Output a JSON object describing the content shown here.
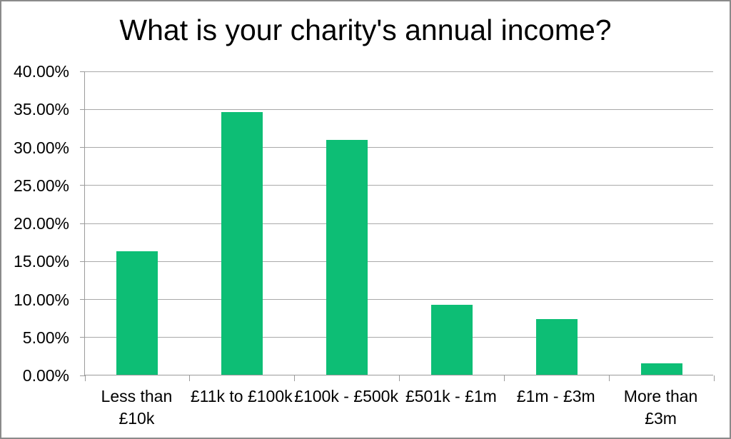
{
  "frame": {
    "border_color": "#8a8a8a",
    "background_color": "#ffffff"
  },
  "chart_data": {
    "type": "bar",
    "title": "What is your charity's annual income?",
    "categories": [
      "Less than £10k",
      "£11k to £100k",
      "£100k - £500k",
      "£501k - £1m",
      "£1m - £3m",
      "More than £3m"
    ],
    "category_label_lines": [
      [
        "Less than",
        "£10k"
      ],
      [
        "£11k to £100k"
      ],
      [
        "£100k - £500k"
      ],
      [
        "£501k - £1m"
      ],
      [
        "£1m - £3m"
      ],
      [
        "More than",
        "£3m"
      ]
    ],
    "values": [
      16.2,
      34.6,
      30.9,
      9.2,
      7.3,
      1.5
    ],
    "unit": "%",
    "xlabel": "",
    "ylabel": "",
    "ylim": [
      0,
      40
    ],
    "ytick_step": 5,
    "ytick_labels": [
      "0.00%",
      "5.00%",
      "10.00%",
      "15.00%",
      "20.00%",
      "25.00%",
      "30.00%",
      "35.00%",
      "40.00%"
    ],
    "grid": true,
    "legend": "none",
    "bar_color": "#0dbe75",
    "gridline_color": "#a9a9a9",
    "axis_color": "#9b9b9b",
    "text_color": "#000000"
  }
}
